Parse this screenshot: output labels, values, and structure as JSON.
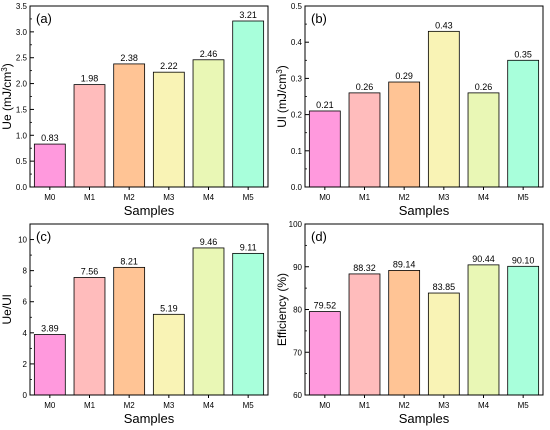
{
  "chart_data": [
    {
      "type": "bar",
      "panel_label": "(a)",
      "categories": [
        "M0",
        "M1",
        "M2",
        "M3",
        "M4",
        "M5"
      ],
      "values": [
        0.83,
        1.98,
        2.38,
        2.22,
        2.46,
        3.21
      ],
      "value_labels": [
        "0.83",
        "1.98",
        "2.38",
        "2.22",
        "2.46",
        "3.21"
      ],
      "xlabel": "Samples",
      "ylabel": "Ue (mJ/cm³)",
      "ylabel_main": "Ue (mJ/cm",
      "ylabel_sup": "3",
      "ylabel_end": ")",
      "ylim": [
        0.0,
        3.5
      ],
      "yticks": [
        0.0,
        0.5,
        1.0,
        1.5,
        2.0,
        2.5,
        3.0,
        3.5
      ],
      "ytick_labels": [
        "0.0",
        "0.5",
        "1.0",
        "1.5",
        "2.0",
        "2.5",
        "3.0",
        "3.5"
      ],
      "grid": false,
      "colors": [
        "#ff99dd",
        "#ffbcbc",
        "#ffc495",
        "#f9f3b5",
        "#e9f7b5",
        "#a8ffdb"
      ]
    },
    {
      "type": "bar",
      "panel_label": "(b)",
      "categories": [
        "M0",
        "M1",
        "M2",
        "M3",
        "M4",
        "M5"
      ],
      "values": [
        0.21,
        0.26,
        0.29,
        0.43,
        0.26,
        0.35
      ],
      "value_labels": [
        "0.21",
        "0.26",
        "0.29",
        "0.43",
        "0.26",
        "0.35"
      ],
      "xlabel": "Samples",
      "ylabel": "Ul (mJ/cm³)",
      "ylabel_main": "Ul (mJ/cm",
      "ylabel_sup": "3",
      "ylabel_end": ")",
      "ylim": [
        0.0,
        0.5
      ],
      "yticks": [
        0.0,
        0.1,
        0.2,
        0.3,
        0.4,
        0.5
      ],
      "ytick_labels": [
        "0.0",
        "0.1",
        "0.2",
        "0.3",
        "0.4",
        "0.5"
      ],
      "grid": false,
      "colors": [
        "#ff99dd",
        "#ffbcbc",
        "#ffc495",
        "#f9f3b5",
        "#e9f7b5",
        "#a8ffdb"
      ]
    },
    {
      "type": "bar",
      "panel_label": "(c)",
      "categories": [
        "M0",
        "M1",
        "M2",
        "M3",
        "M4",
        "M5"
      ],
      "values": [
        3.89,
        7.56,
        8.21,
        5.19,
        9.46,
        9.11
      ],
      "value_labels": [
        "3.89",
        "7.56",
        "8.21",
        "5.19",
        "9.46",
        "9.11"
      ],
      "xlabel": "Samples",
      "ylabel": "Ue/Ul",
      "ylabel_main": "Ue/Ul",
      "ylabel_sup": "",
      "ylabel_end": "",
      "ylim": [
        0,
        11
      ],
      "yticks": [
        0,
        2,
        4,
        6,
        8,
        10
      ],
      "ytick_labels": [
        "0",
        "2",
        "4",
        "6",
        "8",
        "10"
      ],
      "grid": false,
      "colors": [
        "#ff99dd",
        "#ffbcbc",
        "#ffc495",
        "#f9f3b5",
        "#e9f7b5",
        "#a8ffdb"
      ]
    },
    {
      "type": "bar",
      "panel_label": "(d)",
      "categories": [
        "M0",
        "M1",
        "M2",
        "M3",
        "M4",
        "M5"
      ],
      "values": [
        79.52,
        88.32,
        89.14,
        83.85,
        90.44,
        90.1
      ],
      "value_labels": [
        "79.52",
        "88.32",
        "89.14",
        "83.85",
        "90.44",
        "90.10"
      ],
      "xlabel": "Samples",
      "ylabel": "Efficiency (%)",
      "ylabel_main": "Efficiency (%)",
      "ylabel_sup": "",
      "ylabel_end": "",
      "ylim": [
        60,
        100
      ],
      "yticks": [
        60,
        70,
        80,
        90,
        100
      ],
      "ytick_labels": [
        "60",
        "70",
        "80",
        "90",
        "100"
      ],
      "grid": false,
      "colors": [
        "#ff99dd",
        "#ffbcbc",
        "#ffc495",
        "#f9f3b5",
        "#e9f7b5",
        "#a8ffdb"
      ]
    }
  ]
}
